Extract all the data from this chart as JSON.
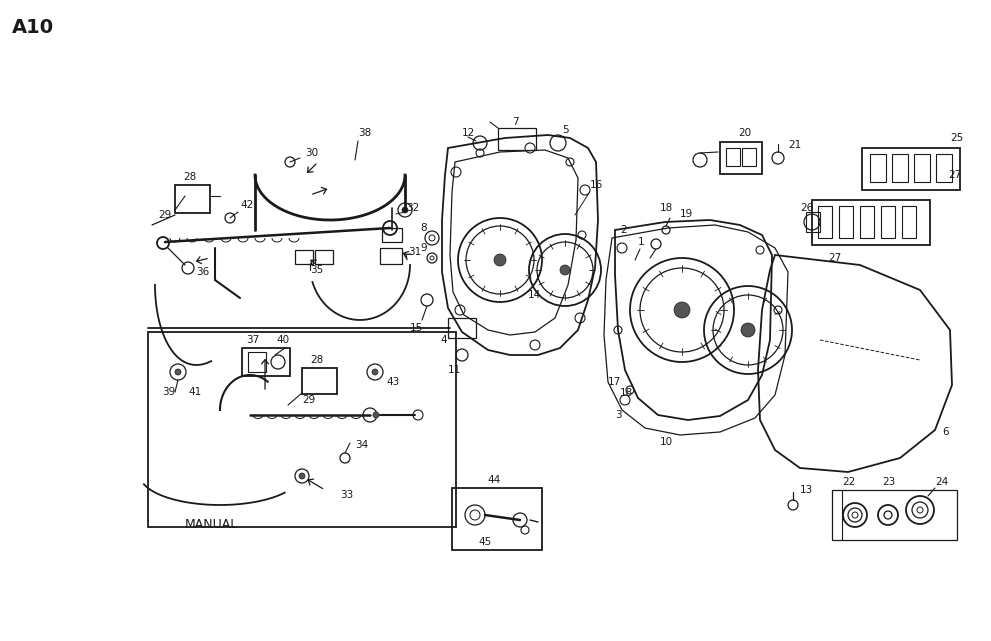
{
  "bg": "#ffffff",
  "fg": "#1a1a1a",
  "title": "A10",
  "manual_text": "MANUAL",
  "fig_w": 9.91,
  "fig_h": 6.41,
  "dpi": 100
}
